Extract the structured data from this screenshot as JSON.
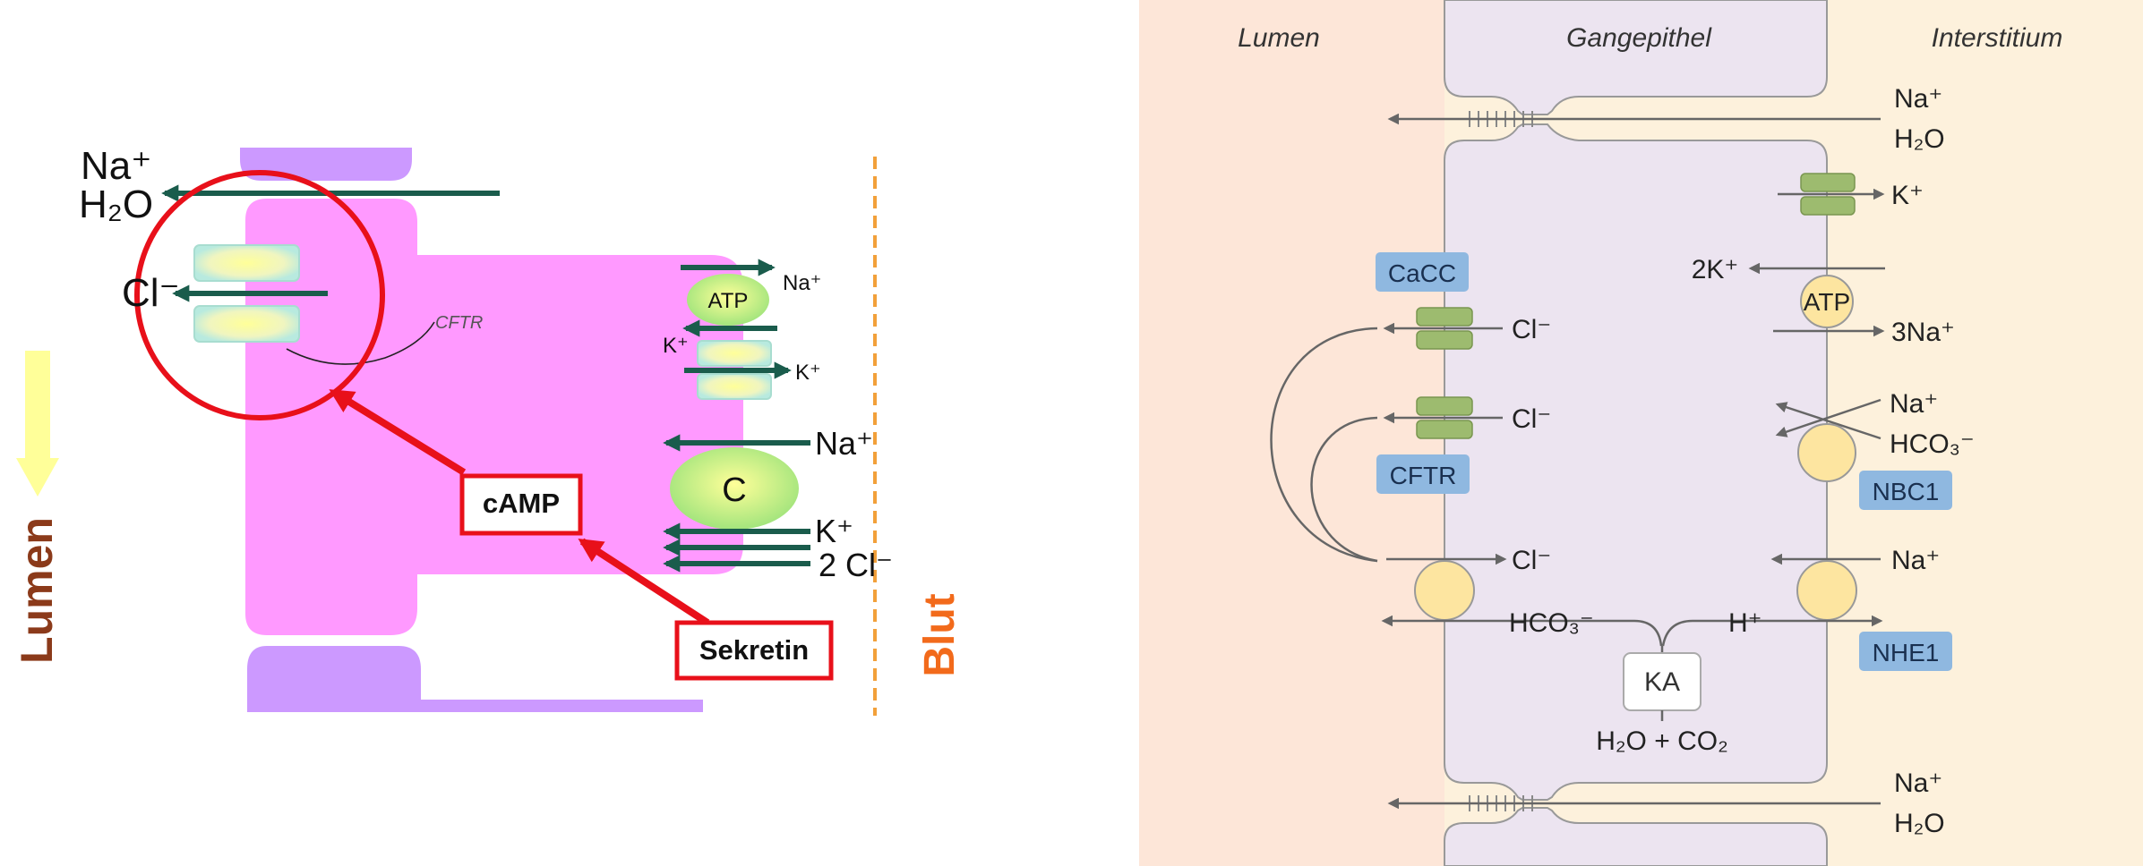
{
  "left_panel": {
    "membrane_labels": {
      "na_plus": "Na⁺",
      "h2o": "H₂O",
      "cl_minus": "Cl⁻",
      "cftr": "CFTR"
    },
    "basolateral_labels": {
      "atp": "ATP",
      "na_out": "Na⁺",
      "k_in": "K⁺",
      "k_out": "K⁺",
      "na_cotransport": "Na⁺",
      "cotransporter": "C",
      "k_cotransport": "K⁺",
      "cl_cotransport": "2 Cl⁻"
    },
    "signaling": {
      "camp": "cAMP",
      "sekretin": "Sekretin"
    },
    "side_labels": {
      "lumen": "Lumen",
      "blut": "Blut"
    },
    "colors": {
      "cell": "#ff99ff",
      "tight_junction": "#cc99ff",
      "arrow": "#1a5c4c",
      "highlight": "#e8101a",
      "blut": "#f26a1b",
      "lumen": "#8b3a1a",
      "flow_arrow": "#ffff99"
    }
  },
  "right_panel": {
    "headers": {
      "lumen": "Lumen",
      "gangepithel": "Gangepithel",
      "interstitium": "Interstitium"
    },
    "paracellular": {
      "top_na": "Na⁺",
      "top_h2o": "H₂O",
      "bottom_na": "Na⁺",
      "bottom_h2o": "H₂O"
    },
    "apical": {
      "cacc": "CaCC",
      "cftr": "CFTR",
      "cl_1": "Cl⁻",
      "cl_2": "Cl⁻",
      "cl_3": "Cl⁻",
      "hco3": "HCO₃⁻"
    },
    "basolateral": {
      "k_plus": "K⁺",
      "two_k": "2K⁺",
      "atp": "ATP",
      "three_na": "3Na⁺",
      "na_nbc": "Na⁺",
      "hco3_nbc": "HCO₃⁻",
      "nbc1": "NBC1",
      "na_nhe": "Na⁺",
      "h_plus": "H⁺",
      "nhe1": "NHE1"
    },
    "intracellular": {
      "ka": "KA",
      "reaction": "H₂O + CO₂"
    },
    "colors": {
      "lumen_bg": "#fde6d8",
      "interstitium_bg": "#fdf1dc",
      "cell": "#ece4f0",
      "transporter_box": "#8fb8e0",
      "channel": "#9dbb6f",
      "carrier": "#fde5a0",
      "arrow": "#666666"
    }
  }
}
